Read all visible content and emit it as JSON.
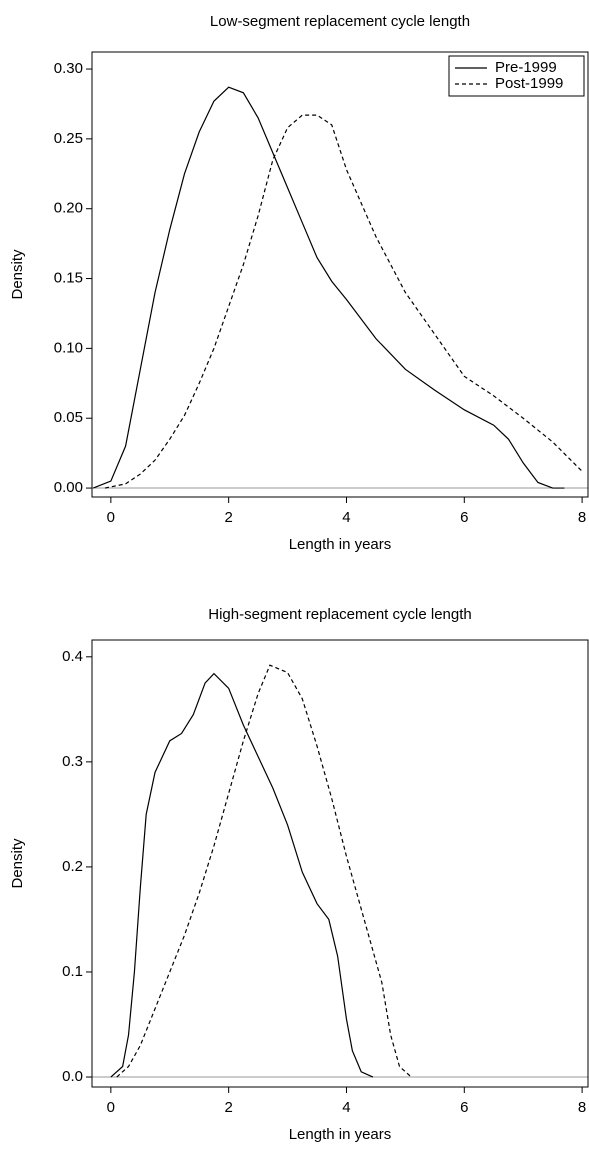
{
  "chart_data": [
    {
      "type": "line",
      "title": "Low-segment replacement cycle length",
      "xlabel": "Length in years",
      "ylabel": "Density",
      "xlim": [
        -0.32,
        8.1
      ],
      "ylim": [
        -0.0064,
        0.3122
      ],
      "xticks": [
        0,
        2,
        4,
        6,
        8
      ],
      "yticks": [
        {
          "value": 0,
          "label": "0.00"
        },
        {
          "value": 0.05,
          "label": "0.05"
        },
        {
          "value": 0.1,
          "label": "0.10"
        },
        {
          "value": 0.15,
          "label": "0.15"
        },
        {
          "value": 0.2,
          "label": "0.20"
        },
        {
          "value": 0.25,
          "label": "0.25"
        },
        {
          "value": 0.3,
          "label": "0.30"
        }
      ],
      "hline": 0,
      "legend": "upper right",
      "series": [
        {
          "name": "Pre-1999",
          "color": "#000000",
          "dash": "solid",
          "x": [
            -0.3,
            0,
            0.25,
            0.5,
            0.75,
            1,
            1.25,
            1.5,
            1.75,
            2,
            2.25,
            2.5,
            2.75,
            3,
            3.25,
            3.5,
            3.75,
            4,
            4.5,
            5,
            5.5,
            6,
            6.5,
            6.75,
            7,
            7.25,
            7.5,
            7.7
          ],
          "values": [
            0,
            0.005,
            0.03,
            0.085,
            0.14,
            0.185,
            0.225,
            0.255,
            0.277,
            0.287,
            0.283,
            0.265,
            0.24,
            0.215,
            0.19,
            0.165,
            0.148,
            0.135,
            0.107,
            0.085,
            0.07,
            0.056,
            0.045,
            0.035,
            0.018,
            0.004,
            0,
            0
          ]
        },
        {
          "name": "Post-1999",
          "color": "#000000",
          "dash": "dashed",
          "x": [
            -0.1,
            0.25,
            0.5,
            0.75,
            1,
            1.25,
            1.5,
            1.75,
            2,
            2.25,
            2.5,
            2.75,
            3,
            3.25,
            3.5,
            3.75,
            4,
            4.5,
            5,
            5.5,
            6,
            6.5,
            7,
            7.5,
            8
          ],
          "values": [
            0,
            0.003,
            0.01,
            0.02,
            0.035,
            0.052,
            0.075,
            0.1,
            0.13,
            0.16,
            0.195,
            0.235,
            0.258,
            0.267,
            0.267,
            0.26,
            0.228,
            0.18,
            0.14,
            0.11,
            0.08,
            0.066,
            0.05,
            0.033,
            0.012
          ]
        }
      ]
    },
    {
      "type": "line",
      "title": "High-segment replacement cycle length",
      "xlabel": "Length in years",
      "ylabel": "Density",
      "xlim": [
        -0.32,
        8.1
      ],
      "ylim": [
        -0.0095,
        0.416
      ],
      "xticks": [
        0,
        2,
        4,
        6,
        8
      ],
      "yticks": [
        {
          "value": 0,
          "label": "0.0"
        },
        {
          "value": 0.1,
          "label": "0.1"
        },
        {
          "value": 0.2,
          "label": "0.2"
        },
        {
          "value": 0.3,
          "label": "0.3"
        },
        {
          "value": 0.4,
          "label": "0.4"
        }
      ],
      "hline": 0,
      "series": [
        {
          "color": "#000000",
          "dash": "solid",
          "x": [
            0,
            0.2,
            0.3,
            0.4,
            0.5,
            0.6,
            0.75,
            1,
            1.2,
            1.4,
            1.6,
            1.75,
            2,
            2.25,
            2.5,
            2.75,
            3,
            3.25,
            3.5,
            3.7,
            3.85,
            4,
            4.1,
            4.25,
            4.45
          ],
          "values": [
            0,
            0.01,
            0.04,
            0.1,
            0.18,
            0.25,
            0.29,
            0.32,
            0.327,
            0.345,
            0.375,
            0.384,
            0.37,
            0.335,
            0.305,
            0.275,
            0.24,
            0.195,
            0.165,
            0.15,
            0.115,
            0.055,
            0.025,
            0.005,
            0
          ]
        },
        {
          "color": "#000000",
          "dash": "dashed",
          "x": [
            0.1,
            0.3,
            0.5,
            0.75,
            1,
            1.25,
            1.5,
            1.75,
            2,
            2.25,
            2.5,
            2.7,
            3,
            3.25,
            3.5,
            3.75,
            4,
            4.25,
            4.5,
            4.6,
            4.75,
            4.9,
            5.1
          ],
          "values": [
            0,
            0.01,
            0.03,
            0.065,
            0.1,
            0.135,
            0.175,
            0.22,
            0.27,
            0.32,
            0.365,
            0.392,
            0.385,
            0.36,
            0.315,
            0.265,
            0.21,
            0.16,
            0.11,
            0.09,
            0.04,
            0.01,
            0
          ]
        }
      ]
    }
  ]
}
